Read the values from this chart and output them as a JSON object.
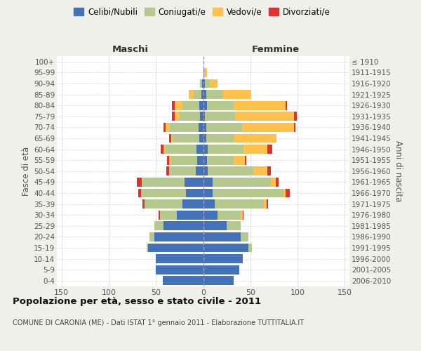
{
  "age_groups": [
    "0-4",
    "5-9",
    "10-14",
    "15-19",
    "20-24",
    "25-29",
    "30-34",
    "35-39",
    "40-44",
    "45-49",
    "50-54",
    "55-59",
    "60-64",
    "65-69",
    "70-74",
    "75-79",
    "80-84",
    "85-89",
    "90-94",
    "95-99",
    "100+"
  ],
  "birth_years": [
    "2006-2010",
    "2001-2005",
    "1996-2000",
    "1991-1995",
    "1986-1990",
    "1981-1985",
    "1976-1980",
    "1971-1975",
    "1966-1970",
    "1961-1965",
    "1956-1960",
    "1951-1955",
    "1946-1950",
    "1941-1945",
    "1936-1940",
    "1931-1935",
    "1926-1930",
    "1921-1925",
    "1916-1920",
    "1911-1915",
    "≤ 1910"
  ],
  "maschi": {
    "celibi": [
      43,
      50,
      50,
      58,
      52,
      42,
      28,
      22,
      18,
      20,
      8,
      6,
      7,
      4,
      5,
      3,
      4,
      2,
      1,
      0,
      0
    ],
    "coniugati": [
      0,
      0,
      0,
      2,
      5,
      10,
      18,
      40,
      48,
      45,
      28,
      28,
      33,
      28,
      30,
      22,
      18,
      8,
      2,
      0,
      0
    ],
    "vedovi": [
      0,
      0,
      0,
      0,
      0,
      0,
      0,
      0,
      0,
      0,
      0,
      2,
      2,
      2,
      5,
      5,
      8,
      5,
      0,
      0,
      0
    ],
    "divorziati": [
      0,
      0,
      0,
      0,
      0,
      0,
      1,
      2,
      3,
      5,
      3,
      2,
      3,
      2,
      2,
      3,
      3,
      0,
      0,
      0,
      0
    ]
  },
  "femmine": {
    "nubili": [
      32,
      38,
      42,
      48,
      40,
      25,
      15,
      12,
      10,
      10,
      5,
      4,
      5,
      3,
      3,
      2,
      4,
      3,
      2,
      1,
      0
    ],
    "coniugate": [
      0,
      0,
      0,
      4,
      8,
      15,
      25,
      52,
      75,
      62,
      48,
      28,
      38,
      30,
      38,
      32,
      28,
      18,
      5,
      1,
      0
    ],
    "vedove": [
      0,
      0,
      0,
      0,
      0,
      0,
      2,
      3,
      2,
      5,
      15,
      12,
      25,
      45,
      55,
      62,
      55,
      30,
      8,
      2,
      0
    ],
    "divorziate": [
      0,
      0,
      0,
      0,
      0,
      0,
      1,
      2,
      5,
      3,
      4,
      2,
      5,
      0,
      2,
      3,
      2,
      0,
      0,
      0,
      0
    ]
  },
  "colors": {
    "celibi": "#4472b8",
    "coniugati": "#b5c98e",
    "vedovi": "#ffc04c",
    "divorziati": "#e03030"
  },
  "xlim": 155,
  "title": "Popolazione per età, sesso e stato civile - 2011",
  "subtitle": "COMUNE DI CARONIA (ME) - Dati ISTAT 1° gennaio 2011 - Elaborazione TUTTITALIA.IT",
  "xlabel_left": "Maschi",
  "xlabel_right": "Femmine",
  "ylabel": "Fasce di età",
  "ylabel_right": "Anni di nascita",
  "legend_labels": [
    "Celibi/Nubili",
    "Coniugati/e",
    "Vedovi/e",
    "Divorziati/e"
  ],
  "bg_color": "#f0f0eb",
  "plot_bg": "#ffffff"
}
